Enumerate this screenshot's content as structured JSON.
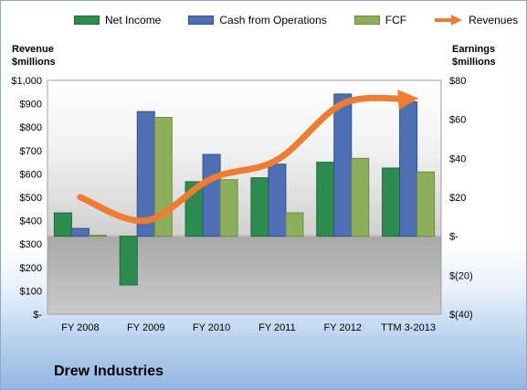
{
  "legend": {
    "net_income": "Net Income",
    "cfo": "Cash from Operations",
    "fcf": "FCF",
    "revenues": "Revenues"
  },
  "axis_titles": {
    "left_line1": "Revenue",
    "left_line2": "$millions",
    "right_line1": "Earnings",
    "right_line2": "$millions"
  },
  "company_name": "Drew Industries",
  "colors": {
    "net_income": "#2e8b4f",
    "cfo": "#4f6fb2",
    "fcf": "#8fae5c",
    "revenues": "#ee7d32"
  },
  "chart_data": {
    "type": "bar",
    "categories": [
      "FY 2008",
      "FY 2009",
      "FY 2010",
      "FY 2011",
      "FY 2012",
      "TTM 3-2013"
    ],
    "series": [
      {
        "name": "Net Income",
        "axis": "right",
        "values": [
          12,
          -25,
          28,
          30,
          38,
          35
        ]
      },
      {
        "name": "Cash from Operations",
        "axis": "right",
        "values": [
          4,
          64,
          42,
          37,
          73,
          69
        ]
      },
      {
        "name": "FCF",
        "axis": "right",
        "values": [
          0.5,
          61,
          29,
          12,
          40,
          33
        ]
      },
      {
        "name": "Revenues",
        "axis": "left",
        "type": "line",
        "values": [
          500,
          400,
          580,
          660,
          900,
          920
        ]
      }
    ],
    "left_axis": {
      "ylim": [
        0,
        1000
      ],
      "ticks": [
        0,
        100,
        200,
        300,
        400,
        500,
        600,
        700,
        800,
        900,
        1000
      ],
      "tick_labels": [
        "$-",
        "$100",
        "$200",
        "$300",
        "$400",
        "$500",
        "$600",
        "$700",
        "$800",
        "$900",
        "$1,000"
      ]
    },
    "right_axis": {
      "ylim": [
        -40,
        80
      ],
      "ticks": [
        -40,
        -20,
        0,
        20,
        40,
        60,
        80
      ],
      "tick_labels": [
        "$(40)",
        "$(20)",
        "$-",
        "$20",
        "$40",
        "$60",
        "$80"
      ]
    },
    "legend_position": "top",
    "grid": false
  }
}
